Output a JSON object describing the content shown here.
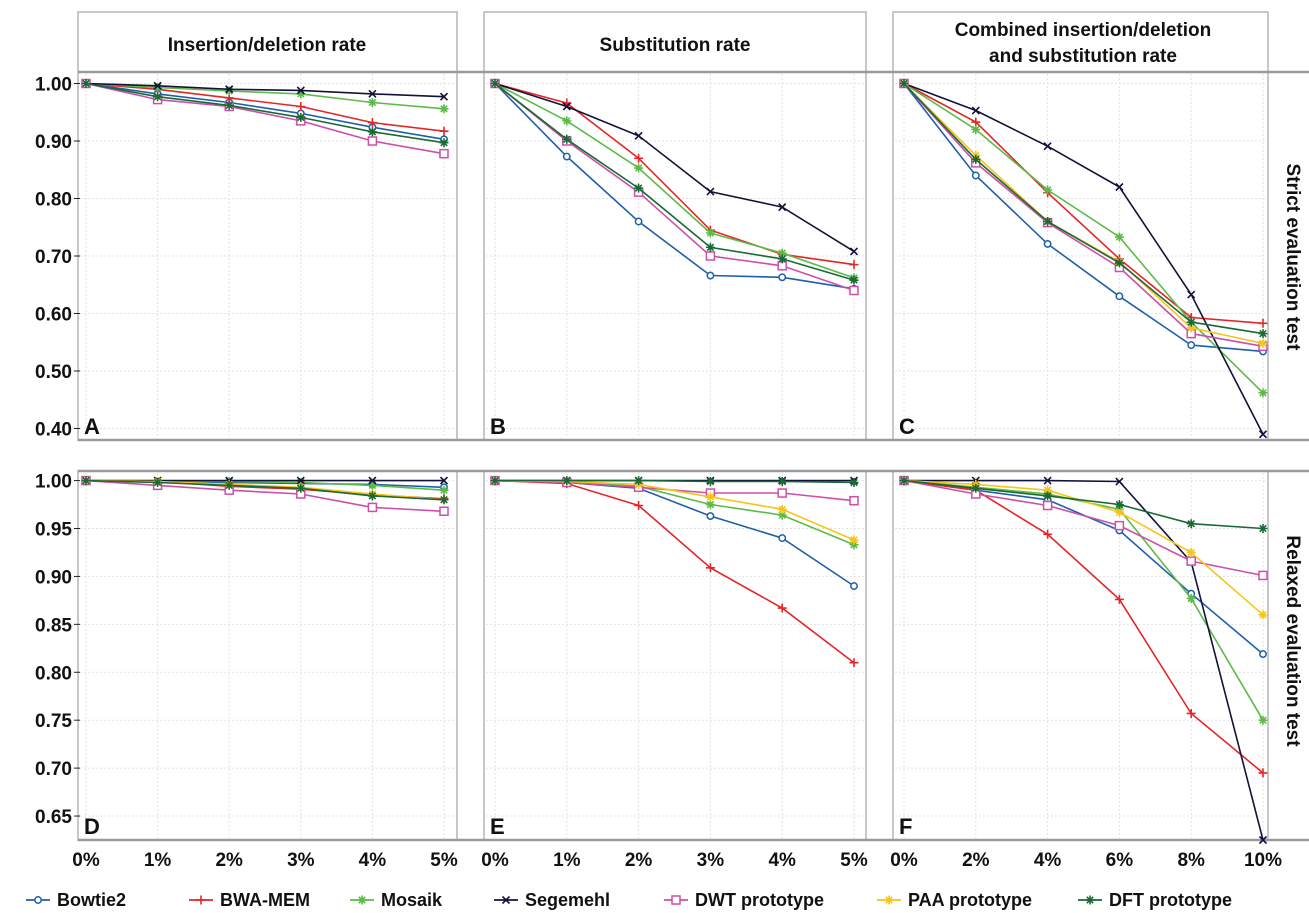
{
  "column_titles": [
    "Insertion/deletion rate",
    "Substitution rate",
    "Combined insertion/deletion",
    "and substitution rate"
  ],
  "row_labels": [
    "Strict evaluation test",
    "Relaxed evaluation test"
  ],
  "chart_data": {
    "type": "line",
    "series_styles": [
      {
        "name": "Bowtie2",
        "color": "#1f5faa",
        "marker": "circle"
      },
      {
        "name": "BWA-MEM",
        "color": "#e32626",
        "marker": "plus"
      },
      {
        "name": "Mosaik",
        "color": "#5cbb46",
        "marker": "star"
      },
      {
        "name": "Segemehl",
        "color": "#12123a",
        "marker": "x"
      },
      {
        "name": "DWT prototype",
        "color": "#cc4fa9",
        "marker": "square"
      },
      {
        "name": "PAA prototype",
        "color": "#f5c518",
        "marker": "star"
      },
      {
        "name": "DFT prototype",
        "color": "#1a6a35",
        "marker": "star"
      }
    ],
    "panels": [
      {
        "label": "A",
        "row": 0,
        "col": 0,
        "x": [
          "0%",
          "1%",
          "2%",
          "3%",
          "4%",
          "5%"
        ],
        "ylim": [
          0.38,
          1.02
        ],
        "yticks": [
          "1.00",
          "0.90",
          "0.80",
          "0.70",
          "0.60",
          "0.50",
          "0.40"
        ],
        "series": [
          {
            "name": "Bowtie2",
            "values": [
              1.0,
              0.982,
              0.967,
              0.948,
              0.924,
              0.903
            ]
          },
          {
            "name": "BWA-MEM",
            "values": [
              1.0,
              0.99,
              0.975,
              0.96,
              0.932,
              0.917
            ]
          },
          {
            "name": "Mosaik",
            "values": [
              1.0,
              0.993,
              0.987,
              0.982,
              0.967,
              0.956
            ]
          },
          {
            "name": "Segemehl",
            "values": [
              1.0,
              0.996,
              0.99,
              0.988,
              0.982,
              0.977
            ]
          },
          {
            "name": "DWT prototype",
            "values": [
              1.0,
              0.972,
              0.96,
              0.935,
              0.9,
              0.878
            ]
          },
          {
            "name": "DFT prototype",
            "values": [
              1.0,
              0.977,
              0.962,
              0.941,
              0.916,
              0.897
            ]
          }
        ]
      },
      {
        "label": "B",
        "row": 0,
        "col": 1,
        "x": [
          "0%",
          "1%",
          "2%",
          "3%",
          "4%",
          "5%"
        ],
        "ylim": [
          0.38,
          1.02
        ],
        "yticks": [],
        "series": [
          {
            "name": "Bowtie2",
            "values": [
              1.0,
              0.873,
              0.76,
              0.666,
              0.663,
              0.643
            ]
          },
          {
            "name": "BWA-MEM",
            "values": [
              1.0,
              0.966,
              0.87,
              0.745,
              0.703,
              0.685
            ]
          },
          {
            "name": "Mosaik",
            "values": [
              1.0,
              0.935,
              0.853,
              0.74,
              0.705,
              0.662
            ]
          },
          {
            "name": "Segemehl",
            "values": [
              1.0,
              0.96,
              0.909,
              0.812,
              0.785,
              0.708
            ]
          },
          {
            "name": "DWT prototype",
            "values": [
              1.0,
              0.9,
              0.811,
              0.7,
              0.683,
              0.64
            ]
          },
          {
            "name": "DFT prototype",
            "values": [
              1.0,
              0.903,
              0.818,
              0.715,
              0.695,
              0.658
            ]
          }
        ]
      },
      {
        "label": "C",
        "row": 0,
        "col": 2,
        "x": [
          "0%",
          "2%",
          "4%",
          "6%",
          "8%",
          "10%"
        ],
        "ylim": [
          0.38,
          1.02
        ],
        "yticks": [],
        "series": [
          {
            "name": "Bowtie2",
            "values": [
              1.0,
              0.84,
              0.721,
              0.63,
              0.545,
              0.534
            ]
          },
          {
            "name": "BWA-MEM",
            "values": [
              1.0,
              0.933,
              0.81,
              0.695,
              0.593,
              0.583
            ]
          },
          {
            "name": "Mosaik",
            "values": [
              1.0,
              0.92,
              0.815,
              0.733,
              0.585,
              0.462
            ]
          },
          {
            "name": "Segemehl",
            "values": [
              1.0,
              0.953,
              0.891,
              0.82,
              0.633,
              0.39
            ]
          },
          {
            "name": "DWT prototype",
            "values": [
              1.0,
              0.862,
              0.758,
              0.68,
              0.565,
              0.543
            ]
          },
          {
            "name": "PAA prototype",
            "values": [
              1.0,
              0.875,
              0.76,
              0.69,
              0.575,
              0.548
            ]
          },
          {
            "name": "DFT prototype",
            "values": [
              1.0,
              0.868,
              0.76,
              0.688,
              0.585,
              0.565
            ]
          }
        ]
      },
      {
        "label": "D",
        "row": 1,
        "col": 0,
        "x": [
          "0%",
          "1%",
          "2%",
          "3%",
          "4%",
          "5%"
        ],
        "ylim": [
          0.625,
          1.01
        ],
        "yticks": [
          "1.00",
          "0.95",
          "0.90",
          "0.85",
          "0.80",
          "0.75",
          "0.70",
          "0.65"
        ],
        "series": [
          {
            "name": "Bowtie2",
            "values": [
              1.0,
              0.999,
              0.998,
              0.997,
              0.996,
              0.993
            ]
          },
          {
            "name": "BWA-MEM",
            "values": [
              1.0,
              0.999,
              0.994,
              0.991,
              0.985,
              0.981
            ]
          },
          {
            "name": "Mosaik",
            "values": [
              1.0,
              0.999,
              0.999,
              0.998,
              0.995,
              0.99
            ]
          },
          {
            "name": "Segemehl",
            "values": [
              1.0,
              1.0,
              1.0,
              1.0,
              1.0,
              1.0
            ]
          },
          {
            "name": "DWT prototype",
            "values": [
              1.0,
              0.995,
              0.99,
              0.986,
              0.972,
              0.968
            ]
          },
          {
            "name": "PAA prototype",
            "values": [
              1.0,
              0.999,
              0.996,
              0.993,
              0.986,
              0.98
            ]
          },
          {
            "name": "DFT prototype",
            "values": [
              1.0,
              0.998,
              0.995,
              0.992,
              0.984,
              0.98
            ]
          }
        ]
      },
      {
        "label": "E",
        "row": 1,
        "col": 1,
        "x": [
          "0%",
          "1%",
          "2%",
          "3%",
          "4%",
          "5%"
        ],
        "ylim": [
          0.625,
          1.01
        ],
        "yticks": [],
        "series": [
          {
            "name": "Bowtie2",
            "values": [
              1.0,
              0.998,
              0.992,
              0.963,
              0.94,
              0.89
            ]
          },
          {
            "name": "BWA-MEM",
            "values": [
              1.0,
              0.997,
              0.974,
              0.909,
              0.867,
              0.81
            ]
          },
          {
            "name": "Mosaik",
            "values": [
              1.0,
              0.999,
              0.994,
              0.975,
              0.964,
              0.933
            ]
          },
          {
            "name": "Segemehl",
            "values": [
              1.0,
              1.0,
              1.0,
              1.0,
              1.0,
              1.0
            ]
          },
          {
            "name": "DWT prototype",
            "values": [
              1.0,
              0.998,
              0.993,
              0.987,
              0.987,
              0.979
            ]
          },
          {
            "name": "PAA prototype",
            "values": [
              1.0,
              0.999,
              0.996,
              0.983,
              0.97,
              0.938
            ]
          },
          {
            "name": "DFT prototype",
            "values": [
              1.0,
              1.0,
              1.0,
              0.999,
              0.999,
              0.998
            ]
          }
        ]
      },
      {
        "label": "F",
        "row": 1,
        "col": 2,
        "x": [
          "0%",
          "2%",
          "4%",
          "6%",
          "8%",
          "10%"
        ],
        "ylim": [
          0.625,
          1.01
        ],
        "yticks": [],
        "series": [
          {
            "name": "Bowtie2",
            "values": [
              1.0,
              0.99,
              0.98,
              0.948,
              0.882,
              0.819
            ]
          },
          {
            "name": "BWA-MEM",
            "values": [
              1.0,
              0.99,
              0.944,
              0.876,
              0.757,
              0.695
            ]
          },
          {
            "name": "Mosaik",
            "values": [
              1.0,
              0.993,
              0.986,
              0.97,
              0.877,
              0.75
            ]
          },
          {
            "name": "Segemehl",
            "values": [
              1.0,
              1.0,
              1.0,
              0.999,
              0.915,
              0.625
            ]
          },
          {
            "name": "DWT prototype",
            "values": [
              1.0,
              0.986,
              0.974,
              0.953,
              0.916,
              0.901
            ]
          },
          {
            "name": "PAA prototype",
            "values": [
              1.0,
              0.996,
              0.99,
              0.967,
              0.925,
              0.86
            ]
          },
          {
            "name": "DFT prototype",
            "values": [
              1.0,
              0.992,
              0.984,
              0.975,
              0.955,
              0.95
            ]
          }
        ]
      }
    ]
  }
}
